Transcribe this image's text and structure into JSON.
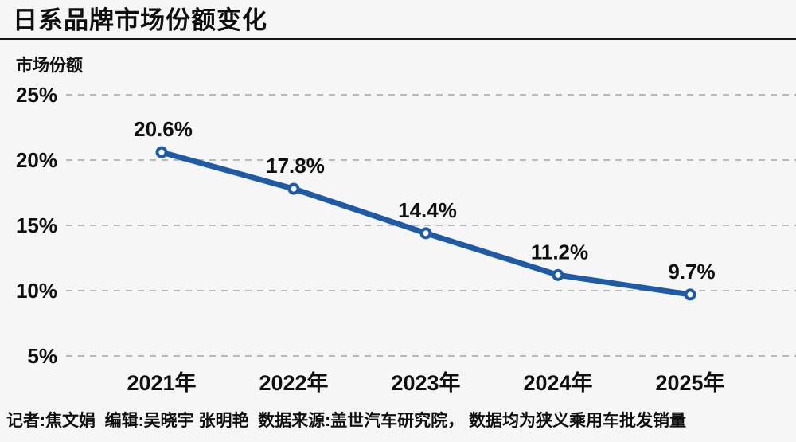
{
  "header": {
    "title": "日系品牌市场份额变化"
  },
  "chart_data": {
    "type": "line",
    "title": "日系品牌市场份额变化",
    "ylabel": "市场份额",
    "xlabel": "",
    "categories": [
      "2021年",
      "2022年",
      "2023年",
      "2024年",
      "2025年"
    ],
    "series": [
      {
        "name": "日系品牌市场份额",
        "values": [
          20.6,
          17.8,
          14.4,
          11.2,
          9.7
        ]
      }
    ],
    "data_labels": [
      "20.6%",
      "17.8%",
      "14.4%",
      "11.2%",
      "9.7%"
    ],
    "y_ticks": [
      {
        "value": 25,
        "label": "25%"
      },
      {
        "value": 20,
        "label": "20%"
      },
      {
        "value": 15,
        "label": "15%"
      },
      {
        "value": 10,
        "label": "10%"
      },
      {
        "value": 5,
        "label": "5%"
      }
    ],
    "ylim": [
      5,
      25
    ],
    "grid": "dashed-horizontal",
    "legend": "none",
    "marker": "open-circle",
    "colors": {
      "line": "#1f5aa6",
      "marker_fill": "#ffffff",
      "grid": "#b9b9b9",
      "text": "#0f0f0f",
      "background": "#f6f6f6"
    }
  },
  "footer": {
    "credits": "记者:焦文娟  编辑:吴晓宇 张明艳  数据来源:盖世汽车研究院， 数据均为狭义乘用车批发销量"
  }
}
